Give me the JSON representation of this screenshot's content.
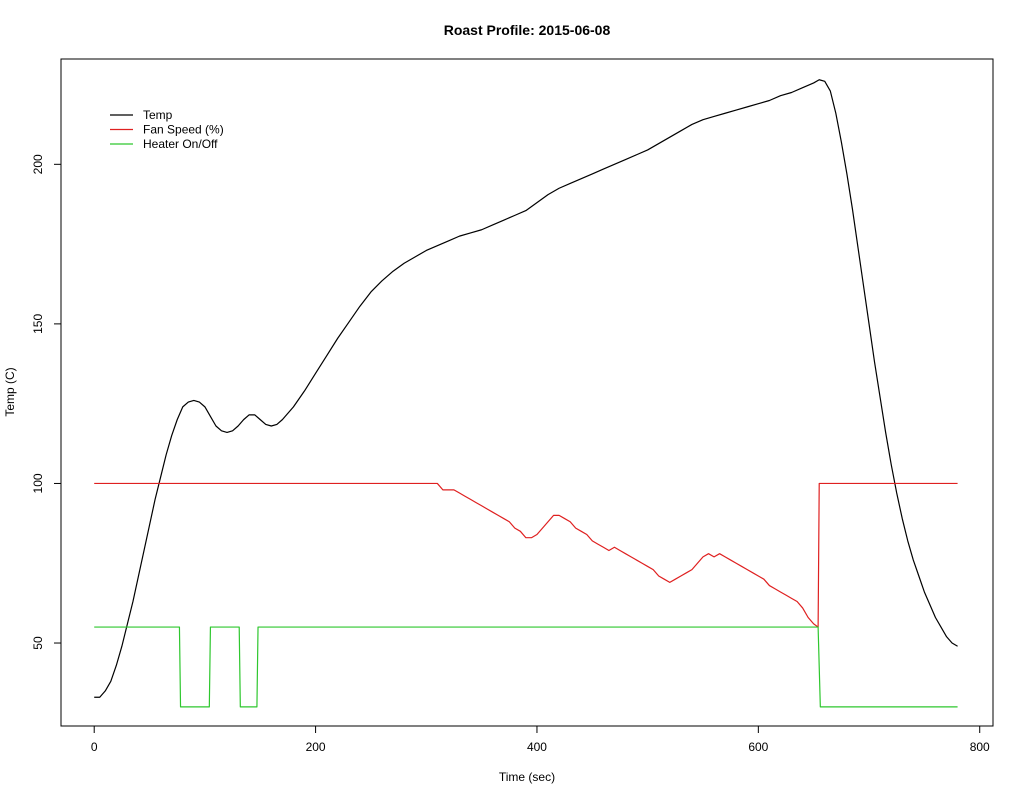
{
  "chart_data": {
    "type": "line",
    "title": "Roast Profile: 2015-06-08",
    "xlabel": "Time (sec)",
    "ylabel": "Temp (C)",
    "xlim": [
      -30,
      812
    ],
    "ylim": [
      24,
      233
    ],
    "x_ticks": [
      0,
      200,
      400,
      600,
      800
    ],
    "y_ticks": [
      50,
      100,
      150,
      200
    ],
    "grid": false,
    "legend_position": "top-left",
    "series": [
      {
        "name": "Temp",
        "color": "#000000",
        "points": [
          [
            0,
            33
          ],
          [
            5,
            33
          ],
          [
            10,
            35
          ],
          [
            15,
            38
          ],
          [
            20,
            43
          ],
          [
            25,
            49
          ],
          [
            30,
            56
          ],
          [
            35,
            63
          ],
          [
            40,
            71
          ],
          [
            45,
            79
          ],
          [
            50,
            87
          ],
          [
            55,
            95
          ],
          [
            60,
            102
          ],
          [
            65,
            109
          ],
          [
            70,
            115
          ],
          [
            75,
            120
          ],
          [
            80,
            124
          ],
          [
            85,
            125.5
          ],
          [
            90,
            126
          ],
          [
            95,
            125.5
          ],
          [
            100,
            124
          ],
          [
            105,
            121
          ],
          [
            110,
            118
          ],
          [
            115,
            116.5
          ],
          [
            120,
            116
          ],
          [
            125,
            116.5
          ],
          [
            130,
            118
          ],
          [
            135,
            120
          ],
          [
            140,
            121.5
          ],
          [
            145,
            121.5
          ],
          [
            150,
            120
          ],
          [
            155,
            118.5
          ],
          [
            160,
            118
          ],
          [
            165,
            118.5
          ],
          [
            170,
            120
          ],
          [
            180,
            124
          ],
          [
            190,
            129
          ],
          [
            200,
            134.5
          ],
          [
            210,
            140
          ],
          [
            220,
            145.5
          ],
          [
            230,
            150.5
          ],
          [
            240,
            155.5
          ],
          [
            250,
            160
          ],
          [
            260,
            163.5
          ],
          [
            270,
            166.5
          ],
          [
            280,
            169
          ],
          [
            290,
            171
          ],
          [
            300,
            173
          ],
          [
            310,
            174.5
          ],
          [
            320,
            176
          ],
          [
            330,
            177.5
          ],
          [
            340,
            178.5
          ],
          [
            350,
            179.5
          ],
          [
            360,
            181
          ],
          [
            370,
            182.5
          ],
          [
            380,
            184
          ],
          [
            390,
            185.5
          ],
          [
            400,
            188
          ],
          [
            410,
            190.5
          ],
          [
            420,
            192.5
          ],
          [
            430,
            194
          ],
          [
            440,
            195.5
          ],
          [
            450,
            197
          ],
          [
            460,
            198.5
          ],
          [
            470,
            200
          ],
          [
            480,
            201.5
          ],
          [
            490,
            203
          ],
          [
            500,
            204.5
          ],
          [
            510,
            206.5
          ],
          [
            520,
            208.5
          ],
          [
            530,
            210.5
          ],
          [
            540,
            212.5
          ],
          [
            550,
            214
          ],
          [
            560,
            215
          ],
          [
            570,
            216
          ],
          [
            580,
            217
          ],
          [
            590,
            218
          ],
          [
            600,
            219
          ],
          [
            610,
            220
          ],
          [
            620,
            221.5
          ],
          [
            630,
            222.5
          ],
          [
            640,
            224
          ],
          [
            650,
            225.5
          ],
          [
            655,
            226.5
          ],
          [
            660,
            226
          ],
          [
            665,
            223
          ],
          [
            670,
            216
          ],
          [
            675,
            207
          ],
          [
            680,
            197
          ],
          [
            685,
            186
          ],
          [
            690,
            174
          ],
          [
            695,
            162
          ],
          [
            700,
            150
          ],
          [
            705,
            138
          ],
          [
            710,
            127
          ],
          [
            715,
            116
          ],
          [
            720,
            106
          ],
          [
            725,
            97
          ],
          [
            730,
            89
          ],
          [
            735,
            82
          ],
          [
            740,
            76
          ],
          [
            745,
            71
          ],
          [
            750,
            66
          ],
          [
            755,
            62
          ],
          [
            760,
            58
          ],
          [
            765,
            55
          ],
          [
            770,
            52
          ],
          [
            775,
            50
          ],
          [
            780,
            49
          ]
        ]
      },
      {
        "name": "Fan Speed (%)",
        "color": "#df2020",
        "points": [
          [
            0,
            100
          ],
          [
            310,
            100
          ],
          [
            315,
            98
          ],
          [
            325,
            98
          ],
          [
            330,
            97
          ],
          [
            335,
            96
          ],
          [
            340,
            95
          ],
          [
            345,
            94
          ],
          [
            350,
            93
          ],
          [
            355,
            92
          ],
          [
            360,
            91
          ],
          [
            365,
            90
          ],
          [
            370,
            89
          ],
          [
            375,
            88
          ],
          [
            380,
            86
          ],
          [
            385,
            85
          ],
          [
            390,
            83
          ],
          [
            395,
            83
          ],
          [
            400,
            84
          ],
          [
            405,
            86
          ],
          [
            410,
            88
          ],
          [
            415,
            90
          ],
          [
            420,
            90
          ],
          [
            425,
            89
          ],
          [
            430,
            88
          ],
          [
            435,
            86
          ],
          [
            440,
            85
          ],
          [
            445,
            84
          ],
          [
            450,
            82
          ],
          [
            455,
            81
          ],
          [
            460,
            80
          ],
          [
            465,
            79
          ],
          [
            470,
            80
          ],
          [
            475,
            79
          ],
          [
            480,
            78
          ],
          [
            485,
            77
          ],
          [
            490,
            76
          ],
          [
            495,
            75
          ],
          [
            500,
            74
          ],
          [
            505,
            73
          ],
          [
            510,
            71
          ],
          [
            515,
            70
          ],
          [
            520,
            69
          ],
          [
            525,
            70
          ],
          [
            530,
            71
          ],
          [
            535,
            72
          ],
          [
            540,
            73
          ],
          [
            545,
            75
          ],
          [
            550,
            77
          ],
          [
            555,
            78
          ],
          [
            560,
            77
          ],
          [
            565,
            78
          ],
          [
            570,
            77
          ],
          [
            575,
            76
          ],
          [
            580,
            75
          ],
          [
            585,
            74
          ],
          [
            590,
            73
          ],
          [
            595,
            72
          ],
          [
            600,
            71
          ],
          [
            605,
            70
          ],
          [
            610,
            68
          ],
          [
            615,
            67
          ],
          [
            620,
            66
          ],
          [
            625,
            65
          ],
          [
            630,
            64
          ],
          [
            635,
            63
          ],
          [
            640,
            61
          ],
          [
            645,
            58
          ],
          [
            650,
            56
          ],
          [
            654,
            55
          ],
          [
            655,
            100
          ],
          [
            780,
            100
          ]
        ]
      },
      {
        "name": "Heater On/Off",
        "color": "#2ec72e",
        "points": [
          [
            0,
            55
          ],
          [
            77,
            55
          ],
          [
            78,
            30
          ],
          [
            104,
            30
          ],
          [
            105,
            55
          ],
          [
            131,
            55
          ],
          [
            132,
            30
          ],
          [
            147,
            30
          ],
          [
            148,
            55
          ],
          [
            654,
            55
          ],
          [
            656,
            30
          ],
          [
            780,
            30
          ]
        ]
      }
    ]
  }
}
